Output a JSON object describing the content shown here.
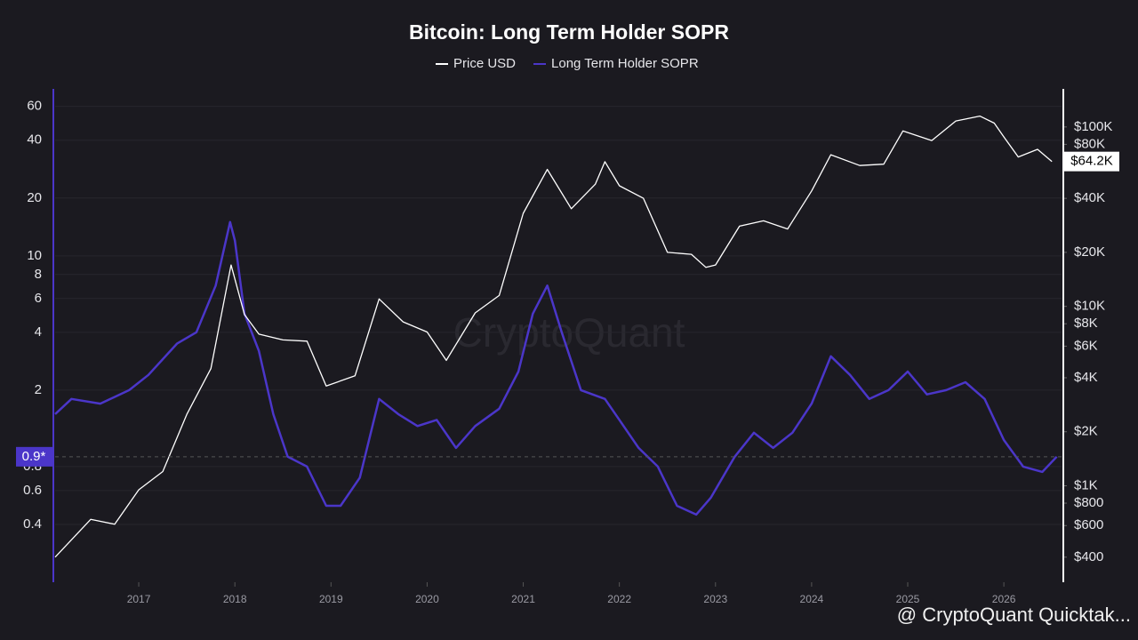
{
  "chart_data": {
    "type": "line",
    "title": "Bitcoin: Long Term Holder SOPR",
    "watermark": "CryptoQuant",
    "footer": "@ CryptoQuant Quicktak...",
    "log_scale": true,
    "grid": true,
    "xlim": [
      2016.13,
      2026.6
    ],
    "xticks": [
      2017,
      2018,
      2019,
      2020,
      2021,
      2022,
      2023,
      2024,
      2025,
      2026
    ],
    "ylim": [
      0.2,
      74
    ],
    "yticks": [
      0.4,
      0.6,
      0.8,
      2,
      4,
      6,
      8,
      10,
      20,
      40,
      60
    ],
    "y2lim": [
      290,
      163000
    ],
    "y2ticks": [
      {
        "value": 400,
        "label": "$400"
      },
      {
        "value": 600,
        "label": "$600"
      },
      {
        "value": 800,
        "label": "$800"
      },
      {
        "value": 1000,
        "label": "$1K"
      },
      {
        "value": 2000,
        "label": "$2K"
      },
      {
        "value": 4000,
        "label": "$4K"
      },
      {
        "value": 6000,
        "label": "$6K"
      },
      {
        "value": 8000,
        "label": "$8K"
      },
      {
        "value": 10000,
        "label": "$10K"
      },
      {
        "value": 20000,
        "label": "$20K"
      },
      {
        "value": 40000,
        "label": "$40K"
      },
      {
        "value": 80000,
        "label": "$80K"
      },
      {
        "value": 100000,
        "label": "$100K"
      }
    ],
    "last_value_markers": [
      {
        "axis": "y",
        "value": 0.9,
        "label": "0.9*",
        "color": "#4b36c9"
      },
      {
        "axis": "y2",
        "value": 64200,
        "label": "$64.2K",
        "color": "#ffffff"
      }
    ],
    "series": [
      {
        "name": "Price USD",
        "color": "#ffffff",
        "axis": "y2",
        "x": [
          2016.13,
          2016.5,
          2016.75,
          2017.0,
          2017.25,
          2017.5,
          2017.75,
          2017.96,
          2018.1,
          2018.25,
          2018.5,
          2018.75,
          2018.95,
          2019.25,
          2019.5,
          2019.75,
          2020.0,
          2020.2,
          2020.5,
          2020.75,
          2021.0,
          2021.25,
          2021.5,
          2021.75,
          2021.85,
          2022.0,
          2022.25,
          2022.5,
          2022.75,
          2022.9,
          2023.0,
          2023.25,
          2023.5,
          2023.75,
          2024.0,
          2024.2,
          2024.5,
          2024.75,
          2024.95,
          2025.25,
          2025.5,
          2025.75,
          2025.9,
          2026.0,
          2026.15,
          2026.35,
          2026.5
        ],
        "values": [
          400,
          650,
          610,
          950,
          1200,
          2500,
          4500,
          17000,
          9000,
          7000,
          6500,
          6400,
          3600,
          4100,
          11000,
          8200,
          7200,
          5000,
          9200,
          11500,
          33000,
          58000,
          35000,
          48000,
          64000,
          47000,
          40000,
          20000,
          19500,
          16500,
          17000,
          28000,
          30000,
          27000,
          44000,
          70000,
          61000,
          62000,
          95000,
          84000,
          108000,
          115000,
          105000,
          88000,
          68000,
          75000,
          64200
        ]
      },
      {
        "name": "Long Term Holder SOPR",
        "color": "#4b36c9",
        "axis": "y",
        "x": [
          2016.13,
          2016.3,
          2016.6,
          2016.9,
          2017.1,
          2017.4,
          2017.6,
          2017.8,
          2017.95,
          2018.0,
          2018.1,
          2018.25,
          2018.4,
          2018.55,
          2018.75,
          2018.95,
          2019.1,
          2019.3,
          2019.5,
          2019.7,
          2019.9,
          2020.1,
          2020.3,
          2020.5,
          2020.75,
          2020.95,
          2021.1,
          2021.25,
          2021.4,
          2021.6,
          2021.85,
          2022.0,
          2022.2,
          2022.4,
          2022.6,
          2022.8,
          2022.95,
          2023.2,
          2023.4,
          2023.6,
          2023.8,
          2024.0,
          2024.2,
          2024.4,
          2024.6,
          2024.8,
          2025.0,
          2025.2,
          2025.4,
          2025.6,
          2025.8,
          2026.0,
          2026.2,
          2026.4,
          2026.55
        ],
        "values": [
          1.5,
          1.8,
          1.7,
          2.0,
          2.4,
          3.5,
          4.0,
          7,
          15,
          12,
          5,
          3.2,
          1.5,
          0.9,
          0.8,
          0.5,
          0.5,
          0.7,
          1.8,
          1.5,
          1.3,
          1.4,
          1.0,
          1.3,
          1.6,
          2.5,
          5,
          7,
          4,
          2.0,
          1.8,
          1.4,
          1.0,
          0.8,
          0.5,
          0.45,
          0.55,
          0.9,
          1.2,
          1.0,
          1.2,
          1.7,
          3.0,
          2.4,
          1.8,
          2.0,
          2.5,
          1.9,
          2.0,
          2.2,
          1.8,
          1.1,
          0.8,
          0.75,
          0.9
        ]
      }
    ]
  }
}
